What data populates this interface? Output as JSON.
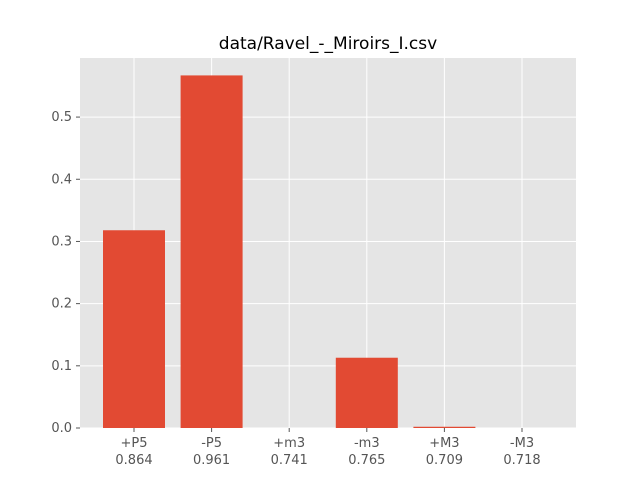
{
  "chart_data": {
    "type": "bar",
    "title": "data/Ravel_-_Miroirs_I.csv",
    "categories": [
      "+P5",
      "-P5",
      "+m3",
      "-m3",
      "+M3",
      "-M3"
    ],
    "category_sublabels": [
      "0.864",
      "0.961",
      "0.741",
      "0.765",
      "0.709",
      "0.718"
    ],
    "values": [
      0.318,
      0.567,
      0.0,
      0.113,
      0.002,
      0.0
    ],
    "xlabel": "",
    "ylabel": "",
    "ylim": [
      0,
      0.595
    ],
    "yticks": [
      0.0,
      0.1,
      0.2,
      0.3,
      0.4,
      0.5
    ],
    "ytick_labels": [
      "0.0",
      "0.1",
      "0.2",
      "0.3",
      "0.4",
      "0.5"
    ],
    "grid": true,
    "colors": {
      "bar": "#E24A33",
      "plot_background": "#E5E5E5",
      "grid": "#FFFFFF",
      "tick_text": "#555555",
      "title_text": "#000000"
    }
  }
}
